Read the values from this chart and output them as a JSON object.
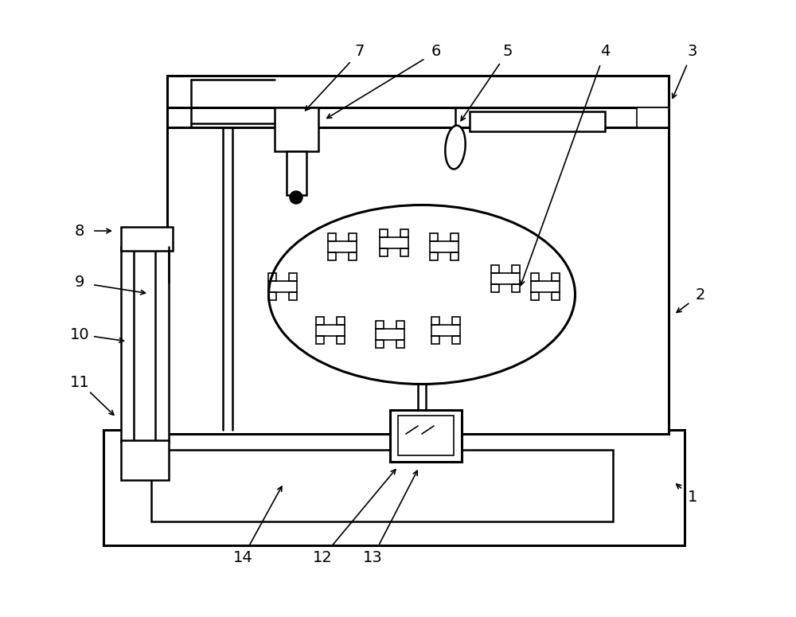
{
  "bg_color": "#ffffff",
  "line_color": "#000000",
  "fig_width": 10.0,
  "fig_height": 7.75,
  "dpi": 100
}
